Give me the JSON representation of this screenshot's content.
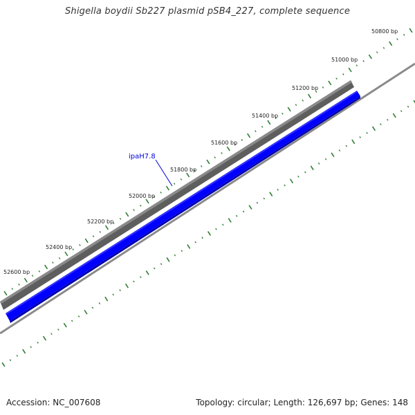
{
  "title": "Shigella boydii Sb227 plasmid pSB4_227, complete sequence",
  "footer": {
    "accession": "Accession: NC_007608",
    "summary": "Topology: circular; Length: 126,697 bp; Genes: 148"
  },
  "ticks": {
    "labels": [
      "50800 bp",
      "51000 bp",
      "51200 bp",
      "51400 bp",
      "51600 bp",
      "51800 bp",
      "52000 bp",
      "52200 bp",
      "52400 bp",
      "52600 bp"
    ]
  },
  "gene": {
    "name": "ipaH7.8"
  },
  "colors": {
    "tick": "#2e7d32",
    "gene": "#0000ff",
    "gene_dark": "#0000aa",
    "backbone": "#707070",
    "ring": "#8a8a8a"
  }
}
